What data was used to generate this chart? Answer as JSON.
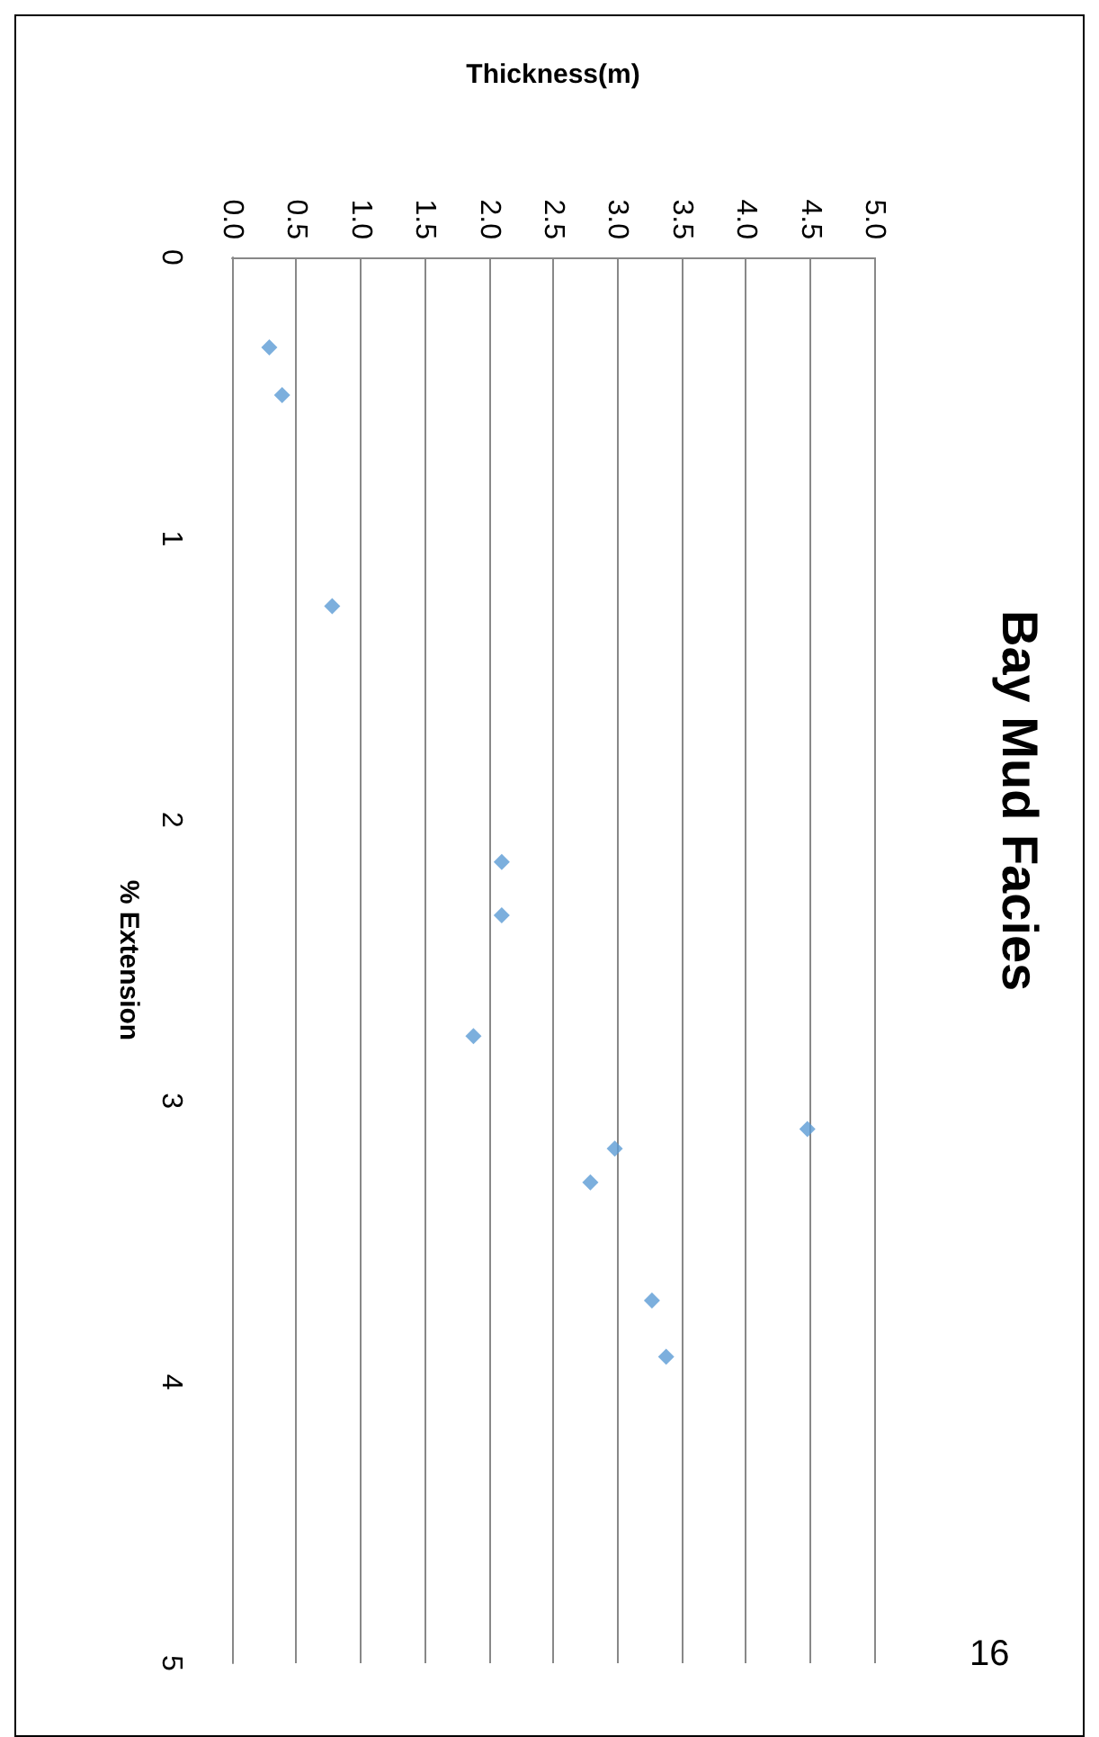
{
  "chart_data": {
    "type": "scatter",
    "title": "Bay Mud Facies",
    "xlabel": "Thickness(m)",
    "ylabel": "% Extension",
    "annotations": [
      "16"
    ],
    "x": [
      0.29,
      0.39,
      0.78,
      2.1,
      2.1,
      1.88,
      4.48,
      2.98,
      2.79,
      3.27,
      3.38
    ],
    "series": [
      {
        "color": "#5b9bd5",
        "values": [
          0.32,
          0.49,
          1.24,
          2.15,
          2.34,
          2.77,
          3.1,
          3.17,
          3.29,
          3.71,
          3.91
        ]
      }
    ],
    "xlim": [
      0,
      5
    ],
    "xticks": [
      {
        "value": 0,
        "label": "0.0"
      },
      {
        "value": 0.5,
        "label": "0.5"
      },
      {
        "value": 1,
        "label": "1.0"
      },
      {
        "value": 1.5,
        "label": "1.5"
      },
      {
        "value": 2,
        "label": "2.0"
      },
      {
        "value": 2.5,
        "label": "2.5"
      },
      {
        "value": 3,
        "label": "3.0"
      },
      {
        "value": 3.5,
        "label": "3.5"
      },
      {
        "value": 4,
        "label": "4.0"
      },
      {
        "value": 4.5,
        "label": "4.5"
      },
      {
        "value": 5,
        "label": "5.0"
      }
    ],
    "ylim": [
      5,
      0
    ],
    "yticks": [
      0,
      1,
      2,
      3,
      4,
      5
    ],
    "grid": "x",
    "marker": "diamond"
  }
}
